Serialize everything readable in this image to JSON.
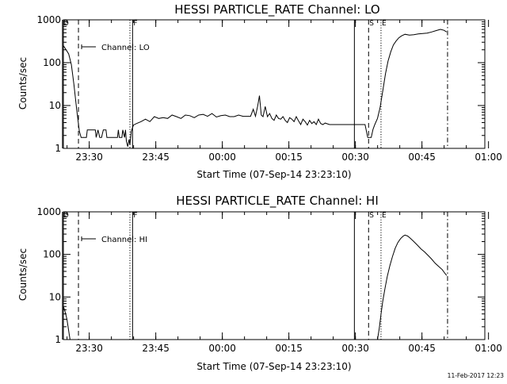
{
  "footer": {
    "date": "11-Feb-2017 12:23"
  },
  "chart_data": [
    {
      "type": "line",
      "title": "HESSI PARTICLE_RATE Channel: LO",
      "xlabel": "Start Time (07-Sep-14 23:23:10)",
      "ylabel": "Counts/sec",
      "yscale": "log",
      "ylim": [
        1,
        1000
      ],
      "xlim": [
        1.0,
        96.0
      ],
      "x_unit": "minutes after 23:23:10 (start time)",
      "x_ticks": [
        {
          "x": 6.83,
          "label": "23:30"
        },
        {
          "x": 21.83,
          "label": "23:45"
        },
        {
          "x": 36.83,
          "label": "00:00"
        },
        {
          "x": 51.83,
          "label": "00:15"
        },
        {
          "x": 66.83,
          "label": "00:30"
        },
        {
          "x": 81.83,
          "label": "00:45"
        },
        {
          "x": 96.83,
          "label": "01:00"
        }
      ],
      "y_ticks": [
        {
          "y": 1,
          "label": "1"
        },
        {
          "y": 10,
          "label": "10"
        },
        {
          "y": 100,
          "label": "100"
        },
        {
          "y": 1000,
          "label": "1000"
        }
      ],
      "legend": [
        {
          "label": "Channel: LO",
          "position": "top-left"
        }
      ],
      "markers": [
        {
          "x": 0.8,
          "label": "D",
          "style": "solid"
        },
        {
          "x": 4.4,
          "label": "",
          "style": "dashed"
        },
        {
          "x": 16.0,
          "label": "",
          "style": "dotted"
        },
        {
          "x": 16.6,
          "label": "F",
          "style": "solid"
        },
        {
          "x": 66.6,
          "label": "",
          "style": "solid"
        },
        {
          "x": 69.8,
          "label": "S",
          "style": "dashed"
        },
        {
          "x": 72.6,
          "label": "E",
          "style": "dotted"
        },
        {
          "x": 87.6,
          "label": "",
          "style": "dashdot"
        }
      ],
      "series": [
        {
          "points": [
            [
              1.0,
              250
            ],
            [
              1.6,
              200
            ],
            [
              2.2,
              160
            ],
            [
              2.8,
              90
            ],
            [
              3.4,
              30
            ],
            [
              4.0,
              8
            ],
            [
              4.6,
              2.5
            ],
            [
              5.0,
              1.8
            ],
            [
              5.6,
              1.8
            ],
            [
              6.2,
              1.8
            ],
            [
              6.4,
              2.7
            ],
            [
              8.2,
              2.7
            ],
            [
              8.4,
              1.8
            ],
            [
              8.8,
              2.7
            ],
            [
              9.2,
              1.8
            ],
            [
              9.6,
              1.8
            ],
            [
              10.0,
              2.7
            ],
            [
              10.6,
              2.7
            ],
            [
              10.8,
              1.8
            ],
            [
              12.0,
              1.8
            ],
            [
              13.2,
              1.8
            ],
            [
              13.4,
              2.7
            ],
            [
              13.6,
              1.8
            ],
            [
              14.2,
              1.8
            ],
            [
              14.4,
              2.7
            ],
            [
              14.8,
              1.8
            ],
            [
              15.0,
              2.7
            ],
            [
              15.2,
              1.5
            ],
            [
              15.5,
              1.1
            ],
            [
              15.8,
              1.6
            ],
            [
              16.0,
              1.2
            ],
            [
              16.3,
              2.5
            ],
            [
              16.8,
              3.5
            ],
            [
              17.5,
              3.8
            ],
            [
              18.5,
              4.2
            ],
            [
              19.5,
              4.8
            ],
            [
              20.5,
              4.2
            ],
            [
              21.5,
              5.5
            ],
            [
              22.5,
              5.0
            ],
            [
              23.5,
              5.2
            ],
            [
              24.5,
              5.0
            ],
            [
              25.5,
              6.0
            ],
            [
              26.5,
              5.5
            ],
            [
              27.5,
              5.0
            ],
            [
              28.5,
              6.0
            ],
            [
              29.5,
              5.8
            ],
            [
              30.5,
              5.2
            ],
            [
              31.5,
              6.0
            ],
            [
              32.5,
              6.2
            ],
            [
              33.5,
              5.6
            ],
            [
              34.5,
              6.5
            ],
            [
              35.5,
              5.4
            ],
            [
              36.5,
              5.8
            ],
            [
              37.5,
              6.0
            ],
            [
              38.5,
              5.5
            ],
            [
              39.5,
              5.5
            ],
            [
              40.5,
              6.0
            ],
            [
              41.5,
              5.6
            ],
            [
              42.5,
              5.6
            ],
            [
              43.2,
              5.6
            ],
            [
              43.8,
              8.2
            ],
            [
              44.3,
              5.6
            ],
            [
              44.8,
              9.8
            ],
            [
              45.2,
              17
            ],
            [
              45.6,
              6.0
            ],
            [
              46.0,
              5.5
            ],
            [
              46.5,
              9.5
            ],
            [
              47.0,
              5.5
            ],
            [
              47.5,
              6.5
            ],
            [
              48.0,
              5.0
            ],
            [
              48.5,
              4.5
            ],
            [
              49.0,
              6.0
            ],
            [
              49.5,
              5.0
            ],
            [
              50.0,
              4.8
            ],
            [
              50.5,
              5.5
            ],
            [
              51.0,
              4.5
            ],
            [
              51.5,
              4.0
            ],
            [
              52.0,
              5.2
            ],
            [
              52.5,
              4.8
            ],
            [
              53.0,
              4.2
            ],
            [
              53.5,
              5.5
            ],
            [
              54.0,
              4.4
            ],
            [
              54.5,
              3.6
            ],
            [
              55.0,
              4.8
            ],
            [
              55.5,
              4.2
            ],
            [
              56.0,
              3.5
            ],
            [
              56.5,
              4.5
            ],
            [
              57.0,
              3.8
            ],
            [
              57.5,
              4.2
            ],
            [
              58.0,
              3.6
            ],
            [
              58.5,
              4.8
            ],
            [
              59.0,
              3.8
            ],
            [
              59.5,
              3.6
            ],
            [
              60.0,
              3.9
            ],
            [
              61.0,
              3.6
            ],
            [
              62.0,
              3.6
            ],
            [
              63.0,
              3.6
            ],
            [
              64.0,
              3.6
            ],
            [
              65.0,
              3.6
            ],
            [
              66.5,
              3.6
            ],
            [
              67.0,
              3.6
            ],
            [
              68.0,
              3.6
            ],
            [
              69.0,
              3.6
            ],
            [
              69.6,
              1.8
            ],
            [
              70.4,
              1.8
            ],
            [
              70.8,
              2.8
            ],
            [
              71.2,
              3.6
            ],
            [
              71.8,
              5
            ],
            [
              72.4,
              9
            ],
            [
              73.0,
              22
            ],
            [
              73.6,
              55
            ],
            [
              74.2,
              110
            ],
            [
              74.8,
              180
            ],
            [
              75.4,
              260
            ],
            [
              76.0,
              320
            ],
            [
              76.6,
              380
            ],
            [
              77.2,
              420
            ],
            [
              78.0,
              460
            ],
            [
              79.0,
              440
            ],
            [
              80.0,
              450
            ],
            [
              81.0,
              470
            ],
            [
              82.0,
              480
            ],
            [
              83.0,
              490
            ],
            [
              84.0,
              520
            ],
            [
              85.0,
              560
            ],
            [
              86.0,
              600
            ],
            [
              86.8,
              570
            ],
            [
              87.4,
              520
            ]
          ]
        }
      ]
    },
    {
      "type": "line",
      "title": "HESSI PARTICLE_RATE Channel: HI",
      "xlabel": "Start Time (07-Sep-14 23:23:10)",
      "ylabel": "Counts/sec",
      "yscale": "log",
      "ylim": [
        1,
        1000
      ],
      "xlim": [
        1.0,
        96.0
      ],
      "x_unit": "minutes after 23:23:10 (start time)",
      "x_ticks": [
        {
          "x": 6.83,
          "label": "23:30"
        },
        {
          "x": 21.83,
          "label": "23:45"
        },
        {
          "x": 36.83,
          "label": "00:00"
        },
        {
          "x": 51.83,
          "label": "00:15"
        },
        {
          "x": 66.83,
          "label": "00:30"
        },
        {
          "x": 81.83,
          "label": "00:45"
        },
        {
          "x": 96.83,
          "label": "01:00"
        }
      ],
      "y_ticks": [
        {
          "y": 1,
          "label": "1"
        },
        {
          "y": 10,
          "label": "10"
        },
        {
          "y": 100,
          "label": "100"
        },
        {
          "y": 1000,
          "label": "1000"
        }
      ],
      "legend": [
        {
          "label": "Channel: HI",
          "position": "top-left"
        }
      ],
      "markers": [
        {
          "x": 0.8,
          "label": "D",
          "style": "solid"
        },
        {
          "x": 4.4,
          "label": "",
          "style": "dashed"
        },
        {
          "x": 16.0,
          "label": "",
          "style": "dotted"
        },
        {
          "x": 16.6,
          "label": "F",
          "style": "solid"
        },
        {
          "x": 66.6,
          "label": "",
          "style": "solid"
        },
        {
          "x": 69.8,
          "label": "S",
          "style": "dashed"
        },
        {
          "x": 72.6,
          "label": "E",
          "style": "dotted"
        },
        {
          "x": 87.6,
          "label": "",
          "style": "dashdot"
        }
      ],
      "series": [
        {
          "points": [
            [
              1.0,
              6
            ],
            [
              1.4,
              4.5
            ],
            [
              1.8,
              3
            ],
            [
              2.2,
              1.6
            ],
            [
              2.5,
              1
            ]
          ]
        },
        {
          "points": [
            [
              71.8,
              1
            ],
            [
              72.2,
              1.8
            ],
            [
              72.6,
              4
            ],
            [
              73.0,
              8
            ],
            [
              73.5,
              16
            ],
            [
              74.0,
              30
            ],
            [
              74.6,
              55
            ],
            [
              75.2,
              90
            ],
            [
              75.8,
              140
            ],
            [
              76.4,
              190
            ],
            [
              77.0,
              235
            ],
            [
              77.6,
              270
            ],
            [
              78.0,
              285
            ],
            [
              78.6,
              270
            ],
            [
              79.2,
              240
            ],
            [
              80.0,
              200
            ],
            [
              80.8,
              165
            ],
            [
              81.6,
              135
            ],
            [
              82.4,
              115
            ],
            [
              83.2,
              95
            ],
            [
              84.0,
              78
            ],
            [
              84.8,
              62
            ],
            [
              85.6,
              52
            ],
            [
              86.4,
              44
            ],
            [
              87.0,
              36
            ],
            [
              87.4,
              32
            ]
          ]
        }
      ]
    }
  ]
}
